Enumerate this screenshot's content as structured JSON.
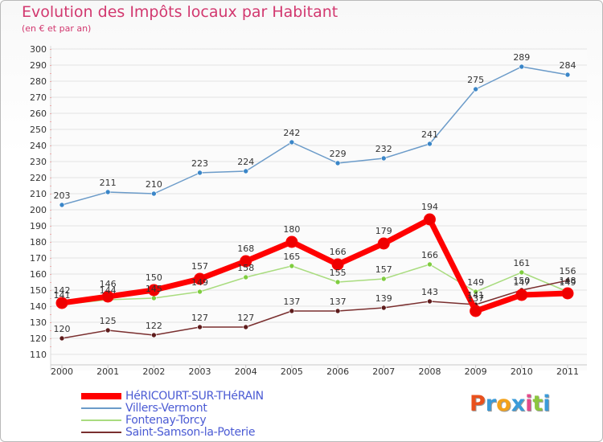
{
  "title": "Evolution des Impôts locaux par Habitant",
  "subtitle": "(en € et par an)",
  "logo": "Proxiti",
  "chart_data": {
    "type": "line",
    "title": "Evolution des Impôts locaux par Habitant",
    "subtitle": "(en € et par an)",
    "xlabel": "",
    "ylabel": "",
    "ylim": [
      110,
      300
    ],
    "y_ticks": [
      110,
      120,
      130,
      140,
      150,
      160,
      170,
      180,
      190,
      200,
      210,
      220,
      230,
      240,
      250,
      260,
      270,
      280,
      290,
      300
    ],
    "categories": [
      "2000",
      "2001",
      "2002",
      "2003",
      "2004",
      "2005",
      "2006",
      "2007",
      "2008",
      "2009",
      "2010",
      "2011"
    ],
    "legend_position": "bottom-left",
    "series": [
      {
        "name": "Villers-Vermont",
        "color": "#6b9bc9",
        "marker_color": "#3a86c8",
        "values": [
          203,
          211,
          210,
          223,
          224,
          242,
          229,
          232,
          241,
          275,
          289,
          284
        ]
      },
      {
        "name": "Fontenay-Torcy",
        "color": "#a9dc7f",
        "marker_color": "#7fcd3f",
        "values": [
          141,
          144,
          145,
          149,
          158,
          165,
          155,
          157,
          166,
          149,
          161,
          149
        ]
      },
      {
        "name": "Saint-Samson-la-Poterie",
        "color": "#7a2f2f",
        "marker_color": "#5e1c1c",
        "values": [
          120,
          125,
          122,
          127,
          127,
          137,
          137,
          139,
          143,
          141,
          150,
          156
        ]
      },
      {
        "name": "HéRICOURT-SUR-THéRAIN",
        "color": "#ff0000",
        "marker_color": "#ee0000",
        "values": [
          142,
          146,
          150,
          157,
          168,
          180,
          166,
          179,
          194,
          137,
          147,
          148
        ]
      }
    ],
    "legend_order": [
      "HéRICOURT-SUR-THéRAIN",
      "Villers-Vermont",
      "Fontenay-Torcy",
      "Saint-Samson-la-Poterie"
    ]
  }
}
